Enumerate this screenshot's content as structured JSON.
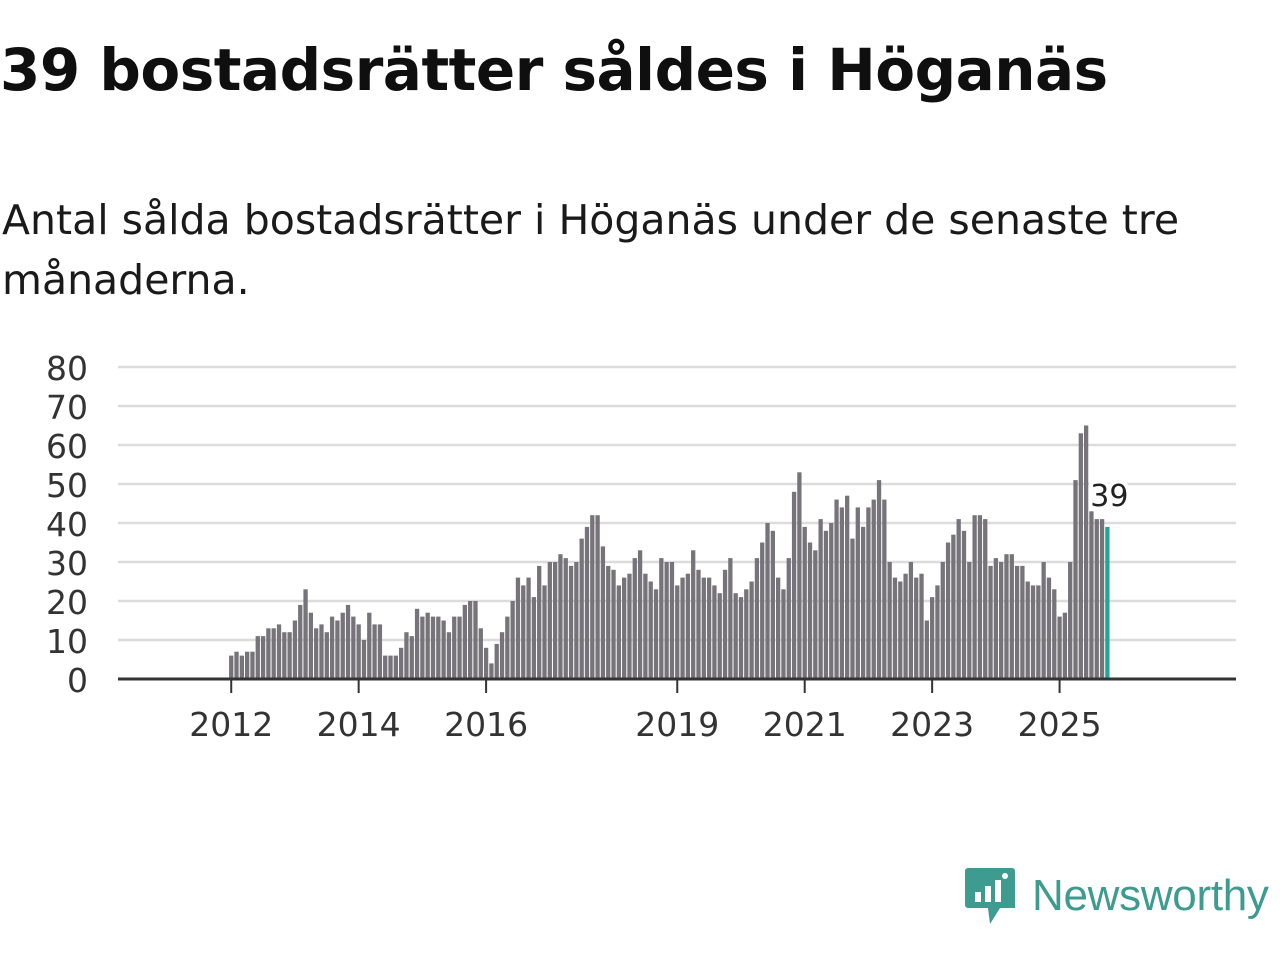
{
  "title": "39 bostadsrätter såldes i Höganäs",
  "subtitle": "Antal sålda bostadsrätter i Höganäs under de senaste tre månaderna.",
  "brand": {
    "name": "Newsworthy",
    "color": "#3d9b8f",
    "icon": "newsworthy-logo-icon"
  },
  "colors": {
    "bar": "#76747a",
    "highlight": "#21a599",
    "grid": "#dcdcdc",
    "axis": "#333333"
  },
  "chart_data": {
    "type": "bar",
    "title": "39 bostadsrätter såldes i Höganäs",
    "xlabel": "",
    "ylabel": "",
    "ylim": [
      0,
      80
    ],
    "yticks": [
      0,
      10,
      20,
      30,
      40,
      50,
      60,
      70,
      80
    ],
    "grid": true,
    "start": "2011-01",
    "xtick_labels": [
      {
        "label": "2012",
        "month": "2012-01"
      },
      {
        "label": "2014",
        "month": "2014-01"
      },
      {
        "label": "2016",
        "month": "2016-01"
      },
      {
        "label": "2019",
        "month": "2019-01"
      },
      {
        "label": "2021",
        "month": "2021-01"
      },
      {
        "label": "2023",
        "month": "2023-01"
      },
      {
        "label": "2025",
        "month": "2025-01"
      }
    ],
    "values": [
      0,
      0,
      0,
      0,
      0,
      0,
      0,
      0,
      0,
      0,
      0,
      0,
      6,
      7,
      6,
      7,
      7,
      11,
      11,
      13,
      13,
      14,
      12,
      12,
      15,
      19,
      23,
      17,
      13,
      14,
      12,
      16,
      15,
      17,
      19,
      16,
      14,
      10,
      17,
      14,
      14,
      6,
      6,
      6,
      8,
      12,
      11,
      18,
      16,
      17,
      16,
      16,
      15,
      12,
      16,
      16,
      19,
      20,
      20,
      13,
      8,
      4,
      9,
      12,
      16,
      20,
      26,
      24,
      26,
      21,
      29,
      24,
      30,
      30,
      32,
      31,
      29,
      30,
      36,
      39,
      42,
      42,
      34,
      29,
      28,
      24,
      26,
      27,
      31,
      33,
      27,
      25,
      23,
      31,
      30,
      30,
      24,
      26,
      27,
      33,
      28,
      26,
      26,
      24,
      22,
      28,
      31,
      22,
      21,
      23,
      25,
      31,
      35,
      40,
      38,
      26,
      23,
      31,
      48,
      53,
      39,
      35,
      33,
      41,
      38,
      40,
      46,
      44,
      47,
      36,
      44,
      39,
      44,
      46,
      51,
      46,
      30,
      26,
      25,
      27,
      30,
      26,
      27,
      15,
      21,
      24,
      30,
      35,
      37,
      41,
      38,
      30,
      42,
      42,
      41,
      29,
      31,
      30,
      32,
      32,
      29,
      29,
      25,
      24,
      24,
      30,
      26,
      23,
      16,
      17,
      30,
      51,
      63,
      65,
      43,
      41,
      41,
      39
    ],
    "highlight": {
      "month": "2025-10",
      "value": 39,
      "label": "39"
    }
  }
}
